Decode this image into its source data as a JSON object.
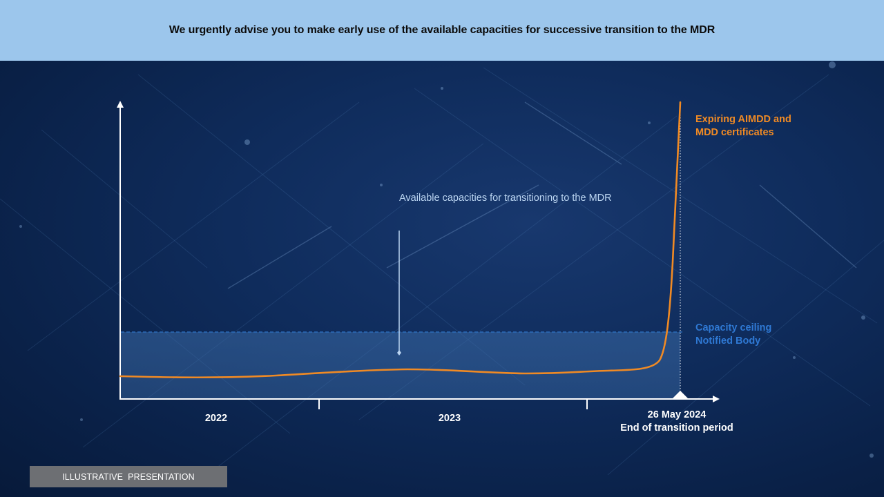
{
  "header": {
    "title": "We urgently advise you to make early use of the available capacities for successive transition to the MDR"
  },
  "annotations": {
    "capacity_note": "Available capacities for transitioning to the MDR",
    "expiring_line1": "Expiring AIMDD and",
    "expiring_line2": "MDD certificates",
    "ceiling_line1": "Capacity ceiling",
    "ceiling_line2": "Notified Body"
  },
  "x_axis": {
    "period1": "2022",
    "period2": "2023",
    "deadline_date": "26 May 2024",
    "deadline_caption": "End of transition period"
  },
  "footer": {
    "badge": "ILLUSTRATIVE  PRESENTATION"
  },
  "colors": {
    "banner": "#9cc6ec",
    "background": "#0f2c5c",
    "curve": "#f08a24",
    "ceiling": "#2e74c8",
    "capacity_text": "#bcd6f2",
    "ceiling_text": "#2f79d4"
  }
}
